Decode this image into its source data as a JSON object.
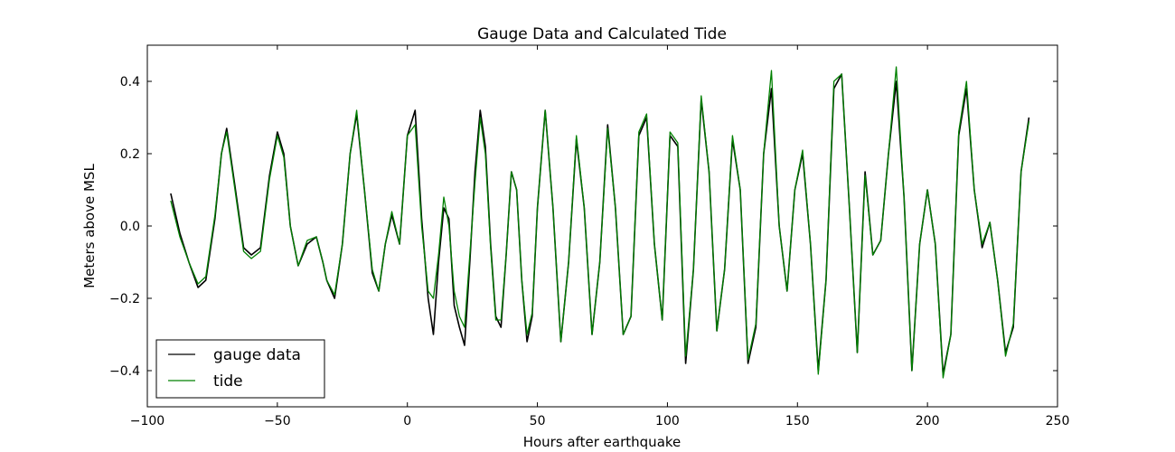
{
  "colors": {
    "gauge": "#000000",
    "tide": "#008000",
    "axes": "#000000",
    "background": "#ffffff"
  },
  "chart_data": {
    "type": "line",
    "title": "Gauge Data and Calculated Tide",
    "xlabel": "Hours after earthquake",
    "ylabel": "Meters above MSL",
    "xlim": [
      -100,
      250
    ],
    "ylim": [
      -0.5,
      0.5
    ],
    "xticks": [
      -100,
      -50,
      0,
      50,
      100,
      150,
      200,
      250
    ],
    "xtick_labels": [
      "−100",
      "−50",
      "0",
      "50",
      "100",
      "150",
      "200",
      "250"
    ],
    "yticks": [
      -0.4,
      -0.2,
      0.0,
      0.2,
      0.4
    ],
    "ytick_labels": [
      "−0.4",
      "−0.2",
      "0.0",
      "0.2",
      "0.4"
    ],
    "grid": false,
    "legend_position": "lower-left",
    "series": [
      {
        "name": "gauge data",
        "color": "#000000",
        "x": [
          -91,
          -87.5,
          -84,
          -80.5,
          -77.5,
          -74,
          -71.5,
          -69.5,
          -66.5,
          -63,
          -60,
          -56.5,
          -53,
          -50,
          -47.5,
          -45,
          -42,
          -38.5,
          -35,
          -32.5,
          -31,
          -28,
          -25,
          -22,
          -19.5,
          -16.5,
          -13.5,
          -11,
          -8.5,
          -6,
          -3,
          0,
          3,
          5.5,
          8,
          10,
          12,
          14,
          16,
          18,
          20,
          22,
          24,
          26,
          28,
          30,
          32,
          34,
          36,
          38,
          40,
          42,
          44,
          46,
          48,
          50,
          53,
          56,
          59,
          62,
          65,
          68,
          71,
          74,
          77,
          80,
          83,
          86,
          89,
          92,
          95,
          98,
          101,
          104,
          107,
          110,
          113,
          116,
          119,
          122,
          125,
          128,
          131,
          134,
          137,
          140,
          143,
          146,
          149,
          152,
          155,
          158,
          161,
          164,
          167,
          170,
          173,
          176,
          179,
          182,
          185,
          188,
          191,
          194,
          197,
          200,
          203,
          206,
          209,
          212,
          215,
          218,
          221,
          224,
          227,
          230,
          233,
          236,
          239
        ],
        "y": [
          0.09,
          -0.02,
          -0.1,
          -0.17,
          -0.15,
          0.02,
          0.2,
          0.27,
          0.12,
          -0.06,
          -0.08,
          -0.06,
          0.14,
          0.26,
          0.2,
          0.0,
          -0.11,
          -0.05,
          -0.03,
          -0.1,
          -0.15,
          -0.2,
          -0.05,
          0.2,
          0.31,
          0.1,
          -0.13,
          -0.18,
          -0.05,
          0.03,
          -0.05,
          0.25,
          0.32,
          0.02,
          -0.2,
          -0.3,
          -0.1,
          0.05,
          0.02,
          -0.22,
          -0.28,
          -0.33,
          -0.1,
          0.15,
          0.32,
          0.22,
          -0.05,
          -0.25,
          -0.28,
          -0.08,
          0.15,
          0.1,
          -0.15,
          -0.32,
          -0.25,
          0.05,
          0.32,
          0.05,
          -0.32,
          -0.1,
          0.24,
          0.05,
          -0.3,
          -0.1,
          0.28,
          0.05,
          -0.3,
          -0.25,
          0.25,
          0.3,
          -0.05,
          -0.26,
          0.25,
          0.22,
          -0.38,
          -0.12,
          0.35,
          0.15,
          -0.29,
          -0.12,
          0.24,
          0.1,
          -0.38,
          -0.28,
          0.2,
          0.38,
          0.0,
          -0.18,
          0.1,
          0.2,
          -0.05,
          -0.4,
          -0.15,
          0.38,
          0.42,
          0.05,
          -0.35,
          0.15,
          -0.08,
          -0.04,
          0.2,
          0.4,
          0.08,
          -0.4,
          -0.05,
          0.1,
          -0.05,
          -0.41,
          -0.3,
          0.25,
          0.38,
          0.1,
          -0.06,
          0.01,
          -0.15,
          -0.35,
          -0.28,
          0.15,
          0.3
        ]
      },
      {
        "name": "tide",
        "color": "#008000",
        "x": [
          -91,
          -87.5,
          -84,
          -80.5,
          -77.5,
          -74,
          -71.5,
          -69.5,
          -66.5,
          -63,
          -60,
          -56.5,
          -53,
          -50,
          -47.5,
          -45,
          -42,
          -38.5,
          -35,
          -32.5,
          -31,
          -28,
          -25,
          -22,
          -19.5,
          -16.5,
          -13.5,
          -11,
          -8.5,
          -6,
          -3,
          0,
          3,
          5.5,
          8,
          10,
          12,
          14,
          16,
          18,
          20,
          22,
          24,
          26,
          28,
          30,
          32,
          34,
          36,
          38,
          40,
          42,
          44,
          46,
          48,
          50,
          53,
          56,
          59,
          62,
          65,
          68,
          71,
          74,
          77,
          80,
          83,
          86,
          89,
          92,
          95,
          98,
          101,
          104,
          107,
          110,
          113,
          116,
          119,
          122,
          125,
          128,
          131,
          134,
          137,
          140,
          143,
          146,
          149,
          152,
          155,
          158,
          161,
          164,
          167,
          170,
          173,
          176,
          179,
          182,
          185,
          188,
          191,
          194,
          197,
          200,
          203,
          206,
          209,
          212,
          215,
          218,
          221,
          224,
          227,
          230,
          233,
          236,
          239
        ],
        "y": [
          0.07,
          -0.03,
          -0.1,
          -0.16,
          -0.14,
          0.03,
          0.2,
          0.26,
          0.11,
          -0.07,
          -0.09,
          -0.07,
          0.13,
          0.25,
          0.19,
          0.0,
          -0.11,
          -0.04,
          -0.03,
          -0.1,
          -0.15,
          -0.19,
          -0.05,
          0.2,
          0.32,
          0.1,
          -0.12,
          -0.18,
          -0.05,
          0.04,
          -0.05,
          0.25,
          0.28,
          0.0,
          -0.18,
          -0.2,
          -0.08,
          0.08,
          0.0,
          -0.18,
          -0.25,
          -0.28,
          -0.08,
          0.12,
          0.3,
          0.2,
          -0.06,
          -0.26,
          -0.26,
          -0.08,
          0.15,
          0.1,
          -0.15,
          -0.3,
          -0.24,
          0.05,
          0.32,
          0.05,
          -0.32,
          -0.1,
          0.25,
          0.05,
          -0.3,
          -0.1,
          0.27,
          0.05,
          -0.3,
          -0.25,
          0.26,
          0.31,
          -0.05,
          -0.26,
          0.26,
          0.23,
          -0.36,
          -0.12,
          0.36,
          0.15,
          -0.29,
          -0.12,
          0.25,
          0.1,
          -0.37,
          -0.27,
          0.2,
          0.43,
          0.0,
          -0.18,
          0.1,
          0.21,
          -0.05,
          -0.41,
          -0.15,
          0.4,
          0.42,
          0.05,
          -0.35,
          0.14,
          -0.08,
          -0.04,
          0.2,
          0.44,
          0.08,
          -0.4,
          -0.05,
          0.1,
          -0.05,
          -0.42,
          -0.3,
          0.26,
          0.4,
          0.1,
          -0.05,
          0.01,
          -0.15,
          -0.36,
          -0.27,
          0.15,
          0.29
        ]
      }
    ],
    "legend": [
      "gauge data",
      "tide"
    ]
  }
}
